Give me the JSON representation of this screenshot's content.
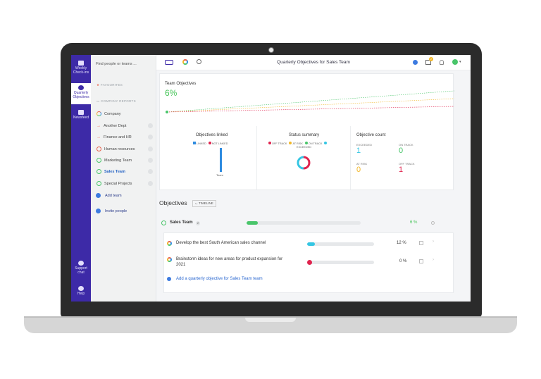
{
  "rail": {
    "items": [
      {
        "label": "Weekly Check-ins"
      },
      {
        "label": "Quarterly Objectives"
      },
      {
        "label": "Newsfeed"
      },
      {
        "label": "Support chat"
      },
      {
        "label": "Help"
      }
    ]
  },
  "panel": {
    "search_placeholder": "Find people or teams ...",
    "favourites_label": "FAVOURITES",
    "company_reports_label": "COMPANY REPORTS",
    "tree": [
      {
        "label": "Company"
      },
      {
        "label": "Another Dept"
      },
      {
        "label": "Finance and HR"
      },
      {
        "label": "Human resources"
      },
      {
        "label": "Marketing Team"
      },
      {
        "label": "Sales Team"
      },
      {
        "label": "Special Projects"
      }
    ],
    "add_team": "Add team",
    "invite_people": "Invite people"
  },
  "topbar": {
    "title": "Quarterly Objectives for Sales Team",
    "badge_count": "2"
  },
  "team_objectives": {
    "label": "Team Objectives",
    "percent": "6%"
  },
  "objectives_linked": {
    "title": "Objectives linked",
    "legend_linked": "LINKED",
    "legend_not_linked": "NOT LINKED",
    "bar_label": "Team",
    "linked_fraction": 1.0
  },
  "status_summary": {
    "title": "Status summary",
    "legend": [
      "OFF TRACK",
      "AT RISK",
      "ON TRACK",
      "EXCEEDED"
    ]
  },
  "objective_count": {
    "title": "Objective count",
    "exceeded_label": "EXCEEDED",
    "exceeded_value": "1",
    "on_track_label": "ON TRACK",
    "on_track_value": "0",
    "at_risk_label": "AT RISK",
    "at_risk_value": "0",
    "off_track_label": "OFF TRACK",
    "off_track_value": "1"
  },
  "objectives": {
    "title": "Objectives",
    "timeline_label": "TIMELINE",
    "team": {
      "name": "Sales Team",
      "count": "2",
      "percent": "6 %",
      "progress": 0.06
    },
    "rows": [
      {
        "title": "Develop the best South American sales channel",
        "percent": "12 %",
        "progress": 0.12,
        "color": "#35c6e3"
      },
      {
        "title": "Brainstorm ideas for new areas for product expansion for 2021",
        "percent": "0 %",
        "progress": 0.0,
        "color": "#e0244e"
      }
    ],
    "add_label": "Add a quarterly objective for Sales Team team"
  },
  "colors": {
    "rail": "#3d2aa7",
    "green": "#48c55a",
    "blue": "#2e8be0",
    "red": "#e0244e",
    "yellow": "#f2b728",
    "cyan": "#35c6e3"
  }
}
